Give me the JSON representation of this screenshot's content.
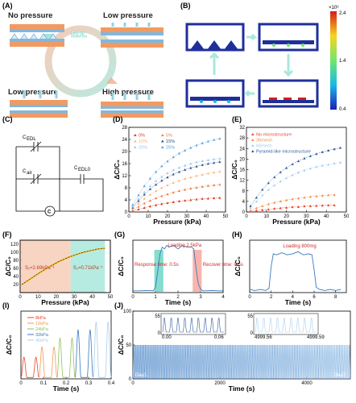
{
  "panel_labels": {
    "A": "(A)",
    "B": "(B)",
    "C": "(C)",
    "D": "(D)",
    "E": "(E)",
    "F": "(F)",
    "G": "(G)",
    "H": "(H)",
    "I": "(I)",
    "J": "(J)"
  },
  "panel_a": {
    "no_pressure": "No pressure",
    "low_pressure_top": "Low pressure",
    "low_pressure_bottom": "Low pressure",
    "high_pressure": "High pressure",
    "center": "EDL"
  },
  "panel_b": {
    "colorbar_max": "2.4",
    "colorbar_mid": "1.4",
    "colorbar_min": "0.4",
    "colorbar_exp": "×10⁹"
  },
  "panel_c": {
    "c_edl_left": "C",
    "c_edl_left_sub": "EDL",
    "c_air": "C",
    "c_air_sub": "air",
    "c_edl_right": "C",
    "c_edl_right_sub": "EDL0",
    "node": "C"
  },
  "colors": {
    "peach": "#f7cdb8",
    "mint": "#a9e8dc",
    "red": "#e8472b",
    "orange": "#f49a54",
    "blue_dark": "#3a78c0",
    "blue_light": "#a8cff0"
  },
  "chart_data": [
    {
      "id": "D",
      "type": "scatter",
      "xlabel": "Pressure (kPa)",
      "ylabel": "ΔC/C₀",
      "xlim": [
        0,
        50
      ],
      "ylim": [
        0,
        28
      ],
      "xticks": [
        0,
        10,
        20,
        30,
        40,
        50
      ],
      "yticks": [
        0,
        4,
        8,
        12,
        16,
        20,
        24,
        28
      ],
      "series": [
        {
          "name": "0%",
          "color": "#d6402a",
          "x": [
            2,
            5,
            8,
            11,
            14,
            17,
            20,
            23,
            26,
            29,
            32,
            35,
            38,
            41,
            44,
            47
          ],
          "values": [
            0.3,
            0.9,
            1.4,
            1.9,
            2.3,
            2.7,
            3.0,
            3.3,
            3.6,
            3.8,
            4.0,
            4.2,
            4.4,
            4.5,
            4.6,
            4.7
          ]
        },
        {
          "name": "5%",
          "color": "#ee8040",
          "x": [
            2,
            5,
            8,
            11,
            14,
            17,
            20,
            23,
            26,
            29,
            32,
            35,
            38,
            41,
            44,
            47
          ],
          "values": [
            0.6,
            1.8,
            2.9,
            3.8,
            4.6,
            5.3,
            5.9,
            6.5,
            7.0,
            7.4,
            7.8,
            8.1,
            8.4,
            8.7,
            8.9,
            9.1
          ]
        },
        {
          "name": "10%",
          "color": "#f6b783",
          "x": [
            2,
            5,
            8,
            11,
            14,
            17,
            20,
            23,
            26,
            29,
            32,
            35,
            38,
            41,
            44,
            47
          ],
          "values": [
            1.0,
            2.8,
            4.4,
            5.8,
            7.0,
            8.0,
            8.9,
            9.7,
            10.4,
            11.0,
            11.5,
            12.0,
            12.4,
            12.8,
            13.1,
            13.4
          ]
        },
        {
          "name": "15%",
          "color": "#2f4f86",
          "x": [
            2,
            5,
            8,
            11,
            14,
            17,
            20,
            23,
            26,
            29,
            32,
            35,
            38,
            41,
            44,
            47
          ],
          "values": [
            1.5,
            3.7,
            5.8,
            7.6,
            9.1,
            10.4,
            11.5,
            12.5,
            13.3,
            14.0,
            14.6,
            15.1,
            15.6,
            16.0,
            16.3,
            16.6
          ]
        },
        {
          "name": "20%",
          "color": "#9ec8ee",
          "x": [
            2,
            5,
            8,
            11,
            14,
            17,
            20,
            23,
            26,
            29,
            32,
            35,
            38,
            41,
            44,
            47
          ],
          "values": [
            1.8,
            4.3,
            6.6,
            8.6,
            10.3,
            11.7,
            12.9,
            13.9,
            14.7,
            15.4,
            16.0,
            16.5,
            16.9,
            17.2,
            17.5,
            17.7
          ]
        },
        {
          "name": "25%",
          "color": "#5aa0e0",
          "x": [
            2,
            5,
            8,
            11,
            14,
            17,
            20,
            23,
            26,
            29,
            32,
            35,
            38,
            41,
            44,
            47
          ],
          "values": [
            2.4,
            5.6,
            8.6,
            11.1,
            13.3,
            15.2,
            16.8,
            18.2,
            19.4,
            20.4,
            21.3,
            22.1,
            22.8,
            23.4,
            23.9,
            24.3
          ]
        }
      ],
      "legend_placement": "top-left"
    },
    {
      "id": "E",
      "type": "scatter",
      "xlabel": "Pressure (kPa)",
      "ylabel": "ΔC/C₀",
      "xlim": [
        0,
        50
      ],
      "ylim": [
        0,
        32
      ],
      "xticks": [
        0,
        10,
        20,
        30,
        40,
        50
      ],
      "yticks": [
        0,
        4,
        8,
        12,
        16,
        20,
        24,
        28,
        32
      ],
      "series": [
        {
          "name": "No microstructure",
          "color": "#e8472b",
          "x": [
            2,
            5,
            8,
            11,
            14,
            17,
            20,
            23,
            26,
            29,
            32,
            35,
            38,
            41,
            44
          ],
          "values": [
            0.2,
            0.5,
            0.8,
            1.0,
            1.3,
            1.5,
            1.7,
            1.9,
            2.0,
            2.2,
            2.3,
            2.4,
            2.5,
            2.6,
            2.6
          ]
        },
        {
          "name": "36mesh",
          "color": "#f08f48",
          "x": [
            2,
            5,
            8,
            11,
            14,
            17,
            20,
            23,
            26,
            29,
            32,
            35,
            38,
            41,
            44
          ],
          "values": [
            0.6,
            1.5,
            2.3,
            3.0,
            3.6,
            4.1,
            4.5,
            4.9,
            5.2,
            5.5,
            5.8,
            6.0,
            6.2,
            6.4,
            6.5
          ]
        },
        {
          "name": "60mesh",
          "color": "#a6cdf0",
          "x": [
            2,
            5,
            8,
            11,
            14,
            17,
            20,
            23,
            26,
            29,
            32,
            35,
            38,
            41,
            44,
            47
          ],
          "values": [
            1.6,
            4.0,
            6.4,
            8.4,
            10.1,
            11.6,
            12.9,
            14.0,
            15.0,
            15.8,
            16.5,
            17.1,
            17.6,
            18.0,
            18.4,
            18.7
          ]
        },
        {
          "name": "Pyramid-like microstructure",
          "color": "#2f5da0",
          "x": [
            2,
            5,
            8,
            11,
            14,
            17,
            20,
            23,
            26,
            29,
            32,
            35,
            38,
            41,
            44,
            47
          ],
          "values": [
            2.3,
            5.5,
            8.5,
            11.0,
            13.2,
            15.1,
            16.7,
            18.1,
            19.3,
            20.3,
            21.2,
            22.0,
            22.7,
            23.3,
            23.8,
            24.3
          ]
        }
      ],
      "legend_placement": "top-left"
    },
    {
      "id": "F",
      "type": "line",
      "xlabel": "Pressure (kPa)",
      "ylabel": "ΔC/C₀",
      "xlim": [
        0,
        50
      ],
      "ylim": [
        0,
        130
      ],
      "xticks": [
        0,
        10,
        20,
        30,
        40,
        50
      ],
      "yticks": [
        20,
        40,
        60,
        80,
        100,
        120
      ],
      "x": [
        1,
        3,
        5,
        7,
        9,
        11,
        13,
        15,
        17,
        19,
        21,
        23,
        25,
        27,
        29,
        31,
        33,
        35,
        37,
        39,
        41,
        43,
        45,
        47
      ],
      "values": [
        20,
        26,
        32,
        38,
        44,
        50,
        55,
        61,
        66,
        71,
        76,
        80,
        84,
        88,
        91,
        94,
        97,
        100,
        102,
        104,
        106,
        108,
        109,
        110
      ],
      "regions": [
        {
          "from": 0,
          "to": 28,
          "color": "#f7cdb8",
          "label": "S₁=2.69kPa⁻¹"
        },
        {
          "from": 28,
          "to": 47,
          "color": "#a9e8dc",
          "label": "S₂=0.71kPa⁻¹"
        }
      ]
    },
    {
      "id": "G",
      "type": "line",
      "xlabel": "Time (s)",
      "ylabel": "ΔC/C₀",
      "xlim": [
        0,
        4
      ],
      "ylim": [
        0,
        30
      ],
      "xticks": [
        0,
        1,
        2,
        3,
        4
      ],
      "x": [
        0,
        0.3,
        0.6,
        0.9,
        1.0,
        1.1,
        1.2,
        1.3,
        1.4,
        1.5,
        1.6,
        1.8,
        2.0,
        2.2,
        2.4,
        2.6,
        2.7,
        2.8,
        2.9,
        3.0,
        3.1,
        3.2,
        3.5,
        3.8,
        4.0
      ],
      "values": [
        1,
        1,
        1.2,
        1,
        3,
        12,
        22,
        26,
        25,
        27,
        26,
        27,
        25,
        27,
        26,
        26,
        25,
        14,
        5,
        2,
        1,
        1,
        1.2,
        1,
        1
      ],
      "annotations": [
        "Loading 2.5kPa",
        "Response time: 0.5s",
        "Recover time: 0.5s"
      ]
    },
    {
      "id": "H",
      "type": "line",
      "xlabel": "Time (s)",
      "ylabel": "ΔC/C₀",
      "xlim": [
        0,
        9
      ],
      "ylim": [
        0,
        5
      ],
      "xticks": [
        0,
        2,
        4,
        6,
        8
      ],
      "x": [
        0,
        0.5,
        1,
        1.5,
        1.8,
        2.0,
        2.2,
        2.5,
        3,
        3.5,
        4,
        4.5,
        5,
        5.5,
        5.8,
        6.0,
        6.2,
        6.5,
        7,
        7.5,
        8,
        8.5
      ],
      "values": [
        0.3,
        0.2,
        0.3,
        0.2,
        0.4,
        2.5,
        3.7,
        3.6,
        3.8,
        3.6,
        3.7,
        3.9,
        3.6,
        3.7,
        3.6,
        2.2,
        0.5,
        0.3,
        0.2,
        0.3,
        0.2,
        0.3
      ],
      "annotations": [
        "Loading 800mg"
      ]
    },
    {
      "id": "I",
      "type": "line",
      "xlabel": "Time (s)",
      "ylabel": "ΔC/C₀",
      "xlim": [
        0,
        0.4
      ],
      "ylim": [
        0,
        1
      ],
      "xticks": [
        0.0,
        0.1,
        0.2,
        0.3,
        0.4
      ],
      "series": [
        {
          "name": "8kPa",
          "color": "#e8472b",
          "start": 0.0,
          "amplitude": 0.3
        },
        {
          "name": "16kPa",
          "color": "#f49a54",
          "start": 0.08,
          "amplitude": 0.45
        },
        {
          "name": "24kPa",
          "color": "#8fc25a",
          "start": 0.16,
          "amplitude": 0.58
        },
        {
          "name": "32kPa",
          "color": "#3a78c0",
          "start": 0.24,
          "amplitude": 0.7
        },
        {
          "name": "40kPa",
          "color": "#a8cff0",
          "start": 0.32,
          "amplitude": 0.82
        }
      ]
    },
    {
      "id": "J",
      "type": "line",
      "xlabel": "Time (s)",
      "ylabel": "ΔC/C₀",
      "xlim": [
        0,
        5000
      ],
      "ylim": [
        0,
        100
      ],
      "xticks": [
        0,
        2000,
        4000
      ],
      "yticks": [
        0,
        50,
        100
      ],
      "inset_left": {
        "xticks": [
          "0.00",
          "0.06"
        ],
        "ymax": "55",
        "ymin": "0"
      },
      "inset_right": {
        "xticks": [
          "4999.56",
          "4999.59"
        ],
        "ymax": "55",
        "ymin": "0"
      },
      "cycles_label_left": "Day1",
      "cycles_label_right": "Day7",
      "amplitude": 50
    }
  ]
}
